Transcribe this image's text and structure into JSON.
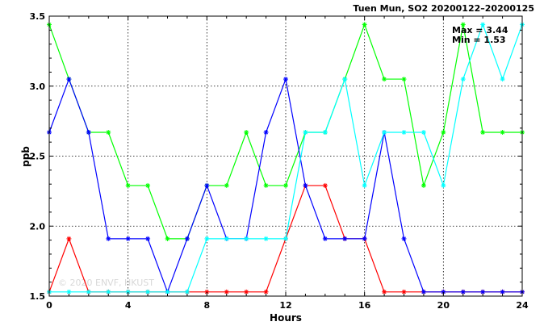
{
  "chart_data": {
    "type": "line",
    "title": "Tuen Mun, SO2 20200122–20200125",
    "xlabel": "Hours",
    "ylabel": "ppb",
    "xlim": [
      0,
      24
    ],
    "ylim": [
      1.5,
      3.5
    ],
    "x_ticks": [
      0,
      4,
      8,
      12,
      16,
      20,
      24
    ],
    "y_ticks": [
      1.5,
      2.0,
      2.5,
      3.0,
      3.5
    ],
    "y_tick_labels": [
      "1.5",
      "2.0",
      "2.5",
      "3.0",
      "3.5"
    ],
    "grid": true,
    "annotations": {
      "max": "Max = 3.44",
      "min": "Min = 1.53"
    },
    "watermark": "© 2020 ENVF, HKUST",
    "x": [
      0,
      1,
      2,
      3,
      4,
      5,
      6,
      7,
      8,
      9,
      10,
      11,
      12,
      13,
      14,
      15,
      16,
      17,
      18,
      19,
      20,
      21,
      22,
      23,
      24
    ],
    "series": [
      {
        "color": "#ff0000",
        "values": [
          1.53,
          1.91,
          1.53,
          1.53,
          1.53,
          1.53,
          1.53,
          1.53,
          1.53,
          1.53,
          1.53,
          1.53,
          1.91,
          2.29,
          2.29,
          1.91,
          1.91,
          1.53,
          1.53,
          1.53,
          1.53,
          1.53,
          1.53,
          1.53,
          1.53
        ]
      },
      {
        "color": "#00ff00",
        "values": [
          3.44,
          3.05,
          2.67,
          2.67,
          2.29,
          2.29,
          1.91,
          1.91,
          2.29,
          2.29,
          2.67,
          2.29,
          2.29,
          2.67,
          2.67,
          3.05,
          3.44,
          3.05,
          3.05,
          2.29,
          2.67,
          3.44,
          2.67,
          2.67,
          2.67
        ]
      },
      {
        "color": "#0000ff",
        "values": [
          2.67,
          3.05,
          2.67,
          1.91,
          1.91,
          1.91,
          1.53,
          1.91,
          2.29,
          1.91,
          1.91,
          2.67,
          3.05,
          2.29,
          1.91,
          1.91,
          1.91,
          2.67,
          1.91,
          1.53,
          1.53,
          1.53,
          1.53,
          1.53,
          1.53
        ]
      },
      {
        "color": "#00ffff",
        "values": [
          1.53,
          1.53,
          1.53,
          1.53,
          1.53,
          1.53,
          1.53,
          1.53,
          1.91,
          1.91,
          1.91,
          1.91,
          1.91,
          2.67,
          2.67,
          3.05,
          2.29,
          2.67,
          2.67,
          2.67,
          2.29,
          3.05,
          3.44,
          3.05,
          3.44
        ]
      }
    ]
  }
}
